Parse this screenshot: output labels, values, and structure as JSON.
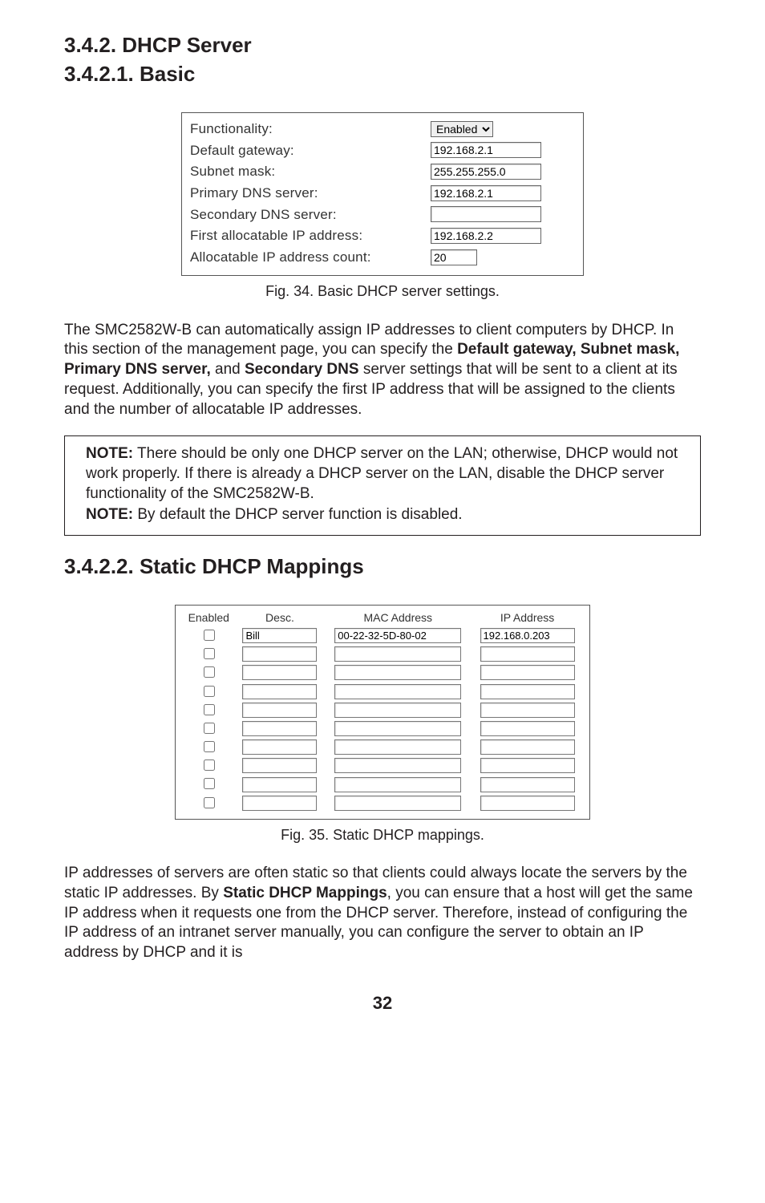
{
  "headings": {
    "h1": "3.4.2. DHCP Server",
    "h2": "3.4.2.1. Basic",
    "h3": "3.4.2.2. Static DHCP Mappings"
  },
  "dhcp_form": {
    "rows": [
      {
        "label": "Functionality:",
        "type": "select",
        "value": "Enabled"
      },
      {
        "label": "Default gateway:",
        "type": "text",
        "value": "192.168.2.1"
      },
      {
        "label": "Subnet mask:",
        "type": "text",
        "value": "255.255.255.0"
      },
      {
        "label": "Primary DNS server:",
        "type": "text",
        "value": "192.168.2.1"
      },
      {
        "label": "Secondary DNS server:",
        "type": "text",
        "value": ""
      },
      {
        "label": "First allocatable IP address:",
        "type": "text",
        "value": "192.168.2.2"
      },
      {
        "label": "Allocatable IP address count:",
        "type": "text_small",
        "value": "20"
      }
    ]
  },
  "captions": {
    "fig34": "Fig. 34. Basic DHCP server settings.",
    "fig35": "Fig. 35. Static DHCP mappings."
  },
  "paragraphs": {
    "p1_pre": "The SMC2582W-B can automatically assign IP addresses to client computers by DHCP. In this section of the management page, you can specify the ",
    "p1_bold1": "Default gateway, Subnet mask, Primary DNS server,",
    "p1_mid": " and ",
    "p1_bold2": "Secondary DNS",
    "p1_post": " server settings that will be sent to a client at its request. Additionally, you can specify the first IP address that will be assigned to the clients and the number of allocatable IP addresses.",
    "note1_label": "NOTE:",
    "note1_text": " There should be only one DHCP server on the LAN; otherwise, DHCP would not work properly. If there is already a DHCP server on the LAN, disable the DHCP server functionality of the SMC2582W-B.",
    "note2_label": "NOTE:",
    "note2_text": " By default the DHCP server function is disabled.",
    "p2_pre": "IP addresses of servers are often static so that clients could always locate the servers by the static IP addresses. By ",
    "p2_bold": "Static DHCP Mappings",
    "p2_post": ", you can ensure that a host will get the same IP address when it requests one from the DHCP server. Therefore, instead of configuring the IP address of an intranet server manually, you can configure the server to obtain an IP address by DHCP and it is"
  },
  "map_table": {
    "headers": [
      "Enabled",
      "Desc.",
      "MAC Address",
      "IP Address"
    ],
    "rows": [
      {
        "desc": "Bill",
        "mac": "00-22-32-5D-80-02",
        "ip": "192.168.0.203"
      },
      {
        "desc": "",
        "mac": "",
        "ip": ""
      },
      {
        "desc": "",
        "mac": "",
        "ip": ""
      },
      {
        "desc": "",
        "mac": "",
        "ip": ""
      },
      {
        "desc": "",
        "mac": "",
        "ip": ""
      },
      {
        "desc": "",
        "mac": "",
        "ip": ""
      },
      {
        "desc": "",
        "mac": "",
        "ip": ""
      },
      {
        "desc": "",
        "mac": "",
        "ip": ""
      },
      {
        "desc": "",
        "mac": "",
        "ip": ""
      },
      {
        "desc": "",
        "mac": "",
        "ip": ""
      }
    ]
  },
  "page_number": "32"
}
